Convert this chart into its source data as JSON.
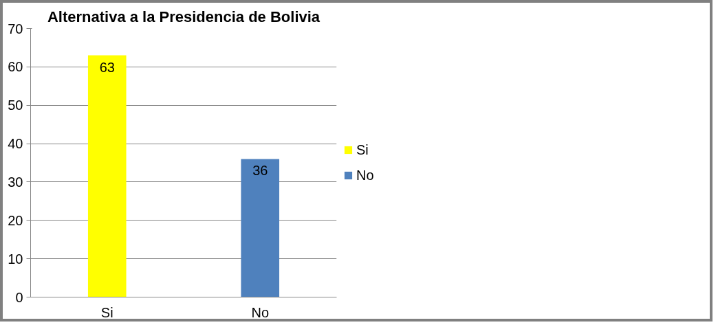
{
  "chart_data": {
    "type": "bar",
    "title": "Alternativa a la Presidencia de Bolivia",
    "categories": [
      "Si",
      "No"
    ],
    "stacked": true,
    "series": [
      {
        "name": "Si",
        "color": "#ffff00",
        "values": [
          63,
          null
        ]
      },
      {
        "name": "No",
        "color": "#4f81bd",
        "values": [
          null,
          36
        ]
      }
    ],
    "ylim": [
      0,
      70
    ],
    "yticks": [
      0,
      10,
      20,
      30,
      40,
      50,
      60,
      70
    ],
    "grid": "y",
    "legend": "right",
    "data_labels": true
  }
}
